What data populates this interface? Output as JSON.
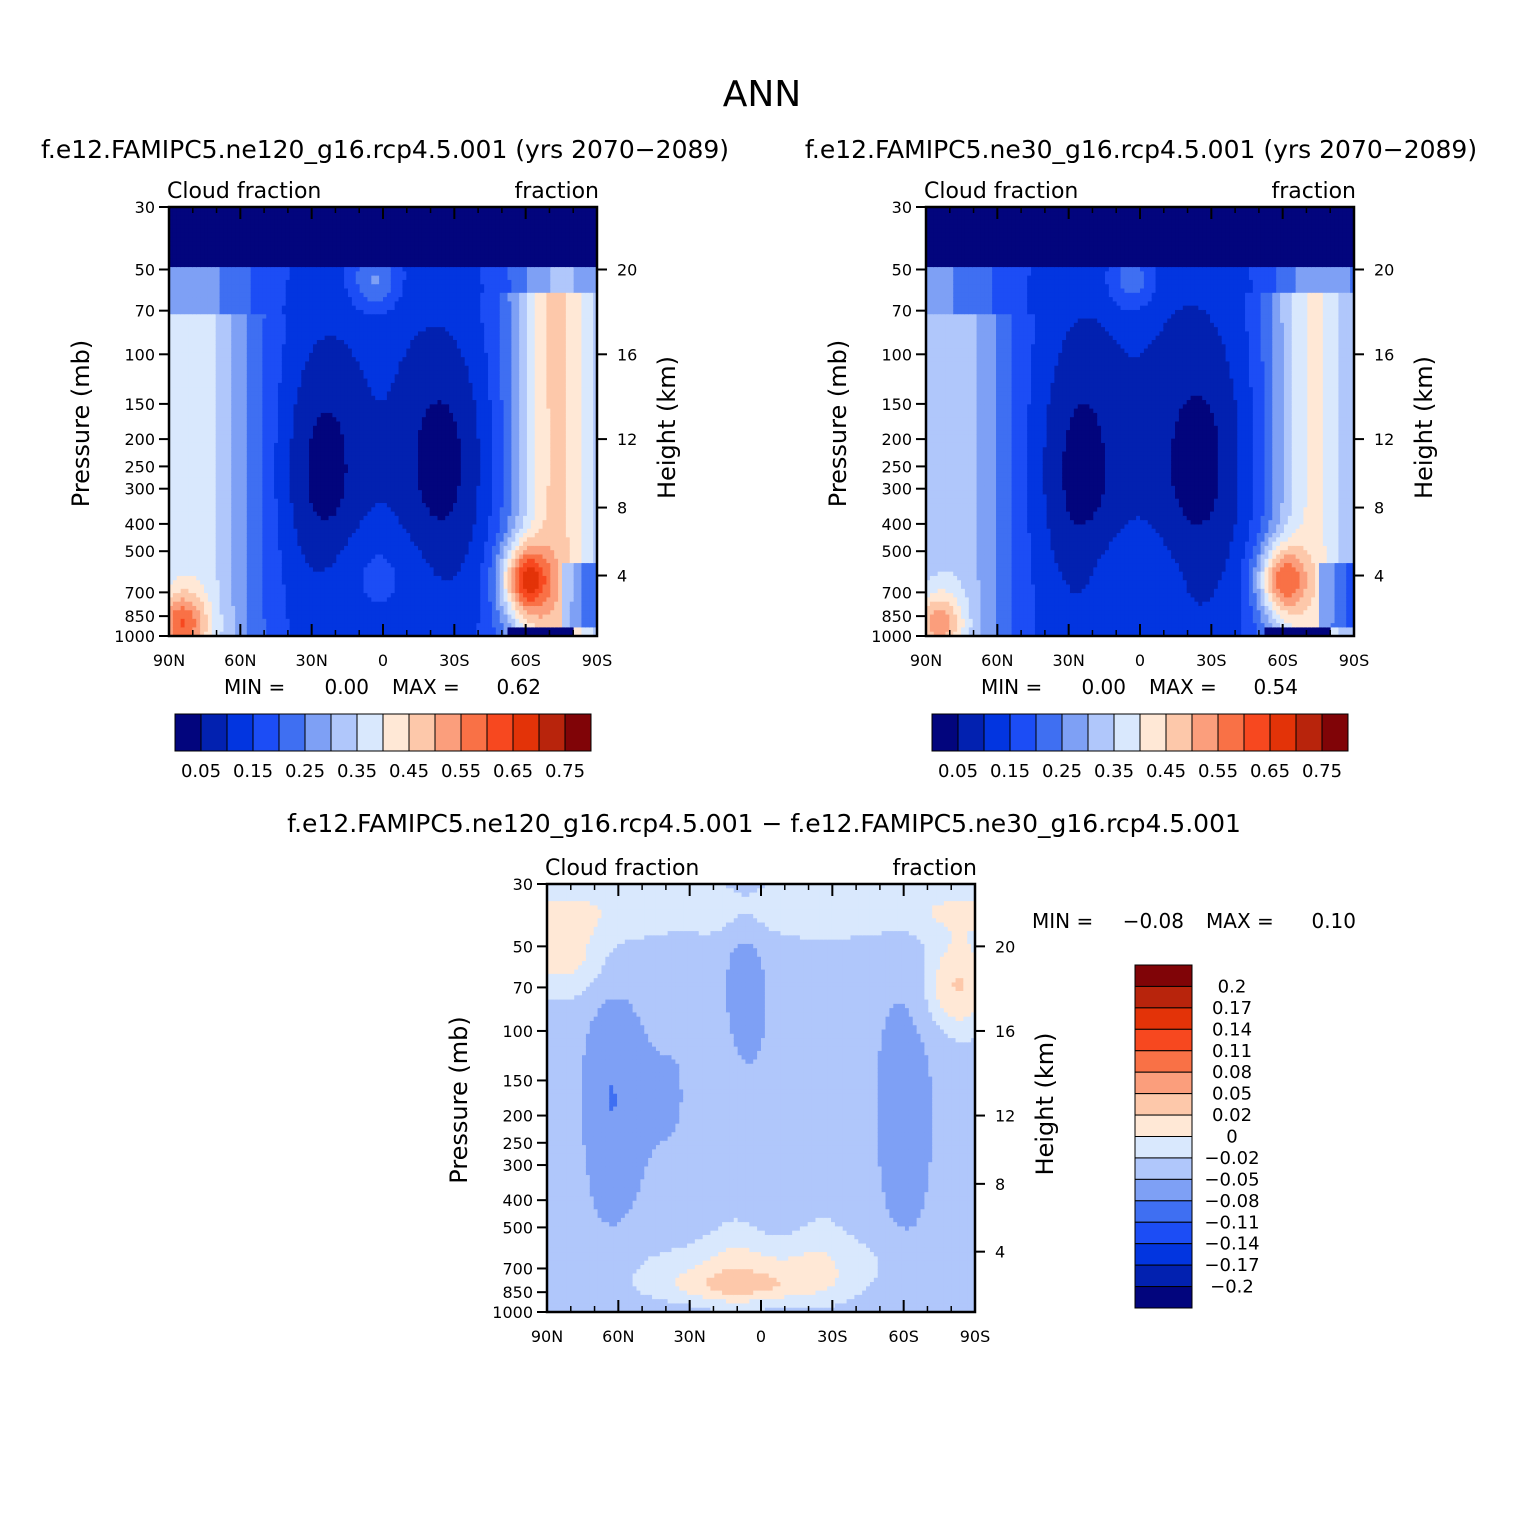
{
  "figure": {
    "title": "ANN"
  },
  "palette_main": [
    "#02057d",
    "#0221b0",
    "#0235e0",
    "#1c4df5",
    "#3f6ff2",
    "#7ea0f5",
    "#b0c7fb",
    "#d9e8fd",
    "#ffe8d6",
    "#fdc8aa",
    "#fb9e7c",
    "#f97146",
    "#f7481f",
    "#e33308",
    "#b8240c",
    "#800407"
  ],
  "palette_diff": [
    "#800407",
    "#b8240c",
    "#e33308",
    "#f7481f",
    "#f97146",
    "#fb9e7c",
    "#fdc8aa",
    "#ffe8d6",
    "#d9e8fd",
    "#b0c7fb",
    "#7ea0f5",
    "#3f6ff2",
    "#1c4df5",
    "#0235e0",
    "#0221b0",
    "#02057d"
  ],
  "chart_data": [
    {
      "type": "heatmap",
      "panel": "model-1",
      "title": "f.e12.FAMIPC5.ne120_g16.rcp4.5.001 (yrs 2070−2089)",
      "left_label": "Cloud fraction",
      "right_label": "fraction",
      "ylabel": "Pressure (mb)",
      "y2label": "Height (km)",
      "x_ticks": [
        "90N",
        "60N",
        "30N",
        "0",
        "30S",
        "60S",
        "90S"
      ],
      "y_ticks": [
        "30",
        "50",
        "70",
        "100",
        "150",
        "200",
        "250",
        "300",
        "400",
        "500",
        "700",
        "850",
        "1000"
      ],
      "y2_ticks": [
        "20",
        "16",
        "12",
        "8",
        "4"
      ],
      "min_label": "MIN =",
      "min_value": "0.00",
      "max_label": "MAX =",
      "max_value": "0.62",
      "levels": [
        0.05,
        0.1,
        0.15,
        0.2,
        0.25,
        0.3,
        0.35,
        0.4,
        0.45,
        0.5,
        0.55,
        0.6,
        0.65,
        0.7,
        0.75
      ],
      "colorbar_labels": [
        "0.05",
        "0.15",
        "0.25",
        "0.35",
        "0.45",
        "0.55",
        "0.65",
        "0.75"
      ]
    },
    {
      "type": "heatmap",
      "panel": "model-2",
      "title": "f.e12.FAMIPC5.ne30_g16.rcp4.5.001 (yrs 2070−2089)",
      "left_label": "Cloud fraction",
      "right_label": "fraction",
      "ylabel": "Pressure (mb)",
      "y2label": "Height (km)",
      "x_ticks": [
        "90N",
        "60N",
        "30N",
        "0",
        "30S",
        "60S",
        "90S"
      ],
      "y_ticks": [
        "30",
        "50",
        "70",
        "100",
        "150",
        "200",
        "250",
        "300",
        "400",
        "500",
        "700",
        "850",
        "1000"
      ],
      "y2_ticks": [
        "20",
        "16",
        "12",
        "8",
        "4"
      ],
      "min_label": "MIN =",
      "min_value": "0.00",
      "max_label": "MAX =",
      "max_value": "0.54",
      "levels": [
        0.05,
        0.1,
        0.15,
        0.2,
        0.25,
        0.3,
        0.35,
        0.4,
        0.45,
        0.5,
        0.55,
        0.6,
        0.65,
        0.7,
        0.75
      ],
      "colorbar_labels": [
        "0.05",
        "0.15",
        "0.25",
        "0.35",
        "0.45",
        "0.55",
        "0.65",
        "0.75"
      ]
    },
    {
      "type": "heatmap",
      "panel": "difference",
      "title": "f.e12.FAMIPC5.ne120_g16.rcp4.5.001 − f.e12.FAMIPC5.ne30_g16.rcp4.5.001",
      "left_label": "Cloud fraction",
      "right_label": "fraction",
      "ylabel": "Pressure (mb)",
      "y2label": "Height (km)",
      "x_ticks": [
        "90N",
        "60N",
        "30N",
        "0",
        "30S",
        "60S",
        "90S"
      ],
      "y_ticks": [
        "30",
        "50",
        "70",
        "100",
        "150",
        "200",
        "250",
        "300",
        "400",
        "500",
        "700",
        "850",
        "1000"
      ],
      "y2_ticks": [
        "20",
        "16",
        "12",
        "8",
        "4"
      ],
      "min_label": "MIN =",
      "min_value": "−0.08",
      "max_label": "MAX =",
      "max_value": "0.10",
      "levels": [
        0.2,
        0.17,
        0.14,
        0.11,
        0.08,
        0.05,
        0.02,
        0,
        -0.02,
        -0.05,
        -0.08,
        -0.11,
        -0.14,
        -0.17,
        -0.2
      ],
      "colorbar_labels": [
        "0.2",
        "0.17",
        "0.14",
        "0.11",
        "0.08",
        "0.05",
        "0.02",
        "0",
        "−0.02",
        "−0.05",
        "−0.08",
        "−0.11",
        "−0.14",
        "−0.17",
        "−0.2"
      ]
    }
  ]
}
